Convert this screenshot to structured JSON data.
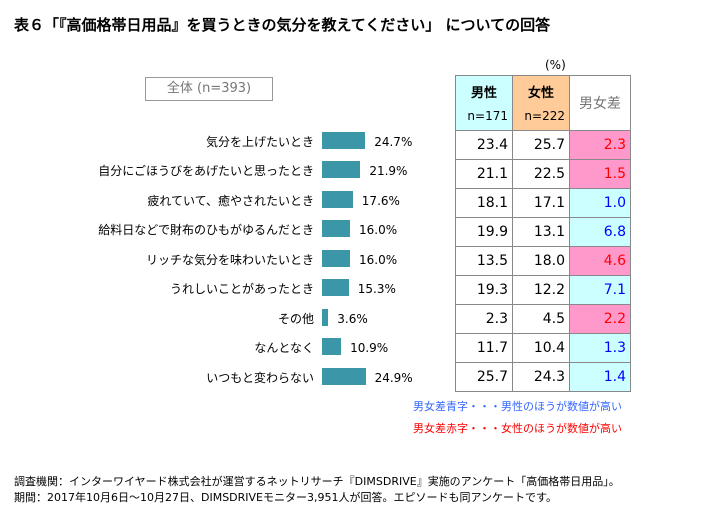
{
  "title": "表６「『高価格帯日用品』を買うときの気分を教えてください」 についての回答",
  "chart_data": {
    "type": "bar",
    "orientation": "horizontal",
    "group_label": "全体 (n=393)",
    "unit": "(%)",
    "categories": [
      "気分を上げたいとき",
      "自分にごほうびをあげたいと思ったとき",
      "疲れていて、癒やされたいとき",
      "給料日などで財布のひもがゆるんだとき",
      "リッチな気分を味わいたいとき",
      "うれしいことがあったとき",
      "その他",
      "なんとなく",
      "いつもと変わらない"
    ],
    "values": [
      24.7,
      21.9,
      17.6,
      16.0,
      16.0,
      15.3,
      3.6,
      10.9,
      24.9
    ],
    "value_labels": [
      "24.7%",
      "21.9%",
      "17.6%",
      "16.0%",
      "16.0%",
      "15.3%",
      "3.6%",
      "10.9%",
      "24.9%"
    ],
    "bar_color": "#3b96a8",
    "table": {
      "headers": [
        {
          "label": "男性",
          "n": "n=171",
          "color": "#ccffff"
        },
        {
          "label": "女性",
          "n": "n=222",
          "color": "#ffcc99"
        },
        {
          "label": "男女差",
          "n": ""
        }
      ],
      "male": [
        "23.4",
        "21.1",
        "18.1",
        "19.9",
        "13.5",
        "19.3",
        "2.3",
        "11.7",
        "25.7"
      ],
      "female": [
        "25.7",
        "22.5",
        "17.1",
        "13.1",
        "18.0",
        "12.2",
        "4.5",
        "10.4",
        "24.3"
      ],
      "diff": [
        "2.3",
        "1.5",
        "1.0",
        "6.8",
        "4.6",
        "7.1",
        "2.2",
        "1.3",
        "1.4"
      ],
      "diff_higher": [
        "female",
        "female",
        "male",
        "male",
        "female",
        "male",
        "female",
        "male",
        "male"
      ]
    },
    "colors": {
      "male_higher_text": "#0000ff",
      "male_higher_bg": "#ccffff",
      "female_higher_text": "#ff0000",
      "female_higher_bg": "#ff99cc"
    }
  },
  "notes": [
    "男女差青字・・・男性のほうが数値が高い",
    "男女差赤字・・・女性のほうが数値が高い"
  ],
  "footer": [
    "調査機関：インターワイヤード株式会社が運営するネットリサーチ『DIMSDRIVE』実施のアンケート「高価格帯日用品」。",
    "期間：2017年10月6日～10月27日、DIMSDRIVEモニター3,951人が回答。エピソードも同アンケートです。"
  ]
}
